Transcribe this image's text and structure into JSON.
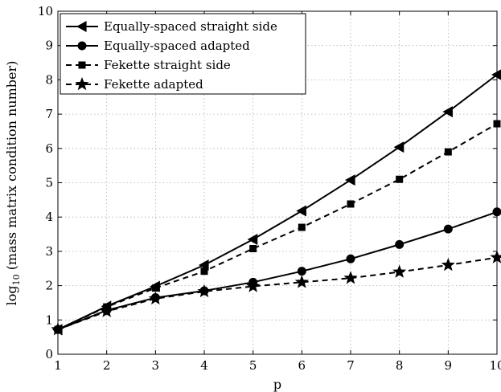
{
  "chart_data": {
    "type": "line",
    "xlabel": "p",
    "ylabel": "log",
    "ylabel_sub": "10",
    "ylabel_rest": " (mass matrix condition number)",
    "xlim": [
      1,
      10
    ],
    "ylim": [
      0,
      10
    ],
    "xticks": [
      "1",
      "2",
      "3",
      "4",
      "5",
      "6",
      "7",
      "8",
      "9",
      "10"
    ],
    "yticks": [
      "0",
      "1",
      "2",
      "3",
      "4",
      "5",
      "6",
      "7",
      "8",
      "9",
      "10"
    ],
    "grid": true,
    "legend_position": "top-left",
    "x": [
      1,
      2,
      3,
      4,
      5,
      6,
      7,
      8,
      9,
      10
    ],
    "series": [
      {
        "name": "Equally-spaced straight side",
        "marker": "triangle-left",
        "line": "solid",
        "values": [
          0.72,
          1.4,
          1.98,
          2.6,
          3.35,
          4.18,
          5.08,
          6.04,
          7.07,
          8.15
        ]
      },
      {
        "name": "Equally-spaced adapted",
        "marker": "circle",
        "line": "solid",
        "values": [
          0.72,
          1.28,
          1.65,
          1.85,
          2.1,
          2.42,
          2.78,
          3.2,
          3.65,
          4.15
        ]
      },
      {
        "name": "Fekette straight side",
        "marker": "square",
        "line": "dashed",
        "values": [
          0.72,
          1.38,
          1.93,
          2.42,
          3.08,
          3.7,
          4.38,
          5.1,
          5.9,
          6.72
        ]
      },
      {
        "name": "Fekette adapted",
        "marker": "star",
        "line": "dashed",
        "values": [
          0.72,
          1.25,
          1.62,
          1.83,
          1.98,
          2.1,
          2.22,
          2.4,
          2.6,
          2.82
        ]
      }
    ],
    "colors": {
      "line": "#000000",
      "grid": "#b0b0b0",
      "background": "#ffffff"
    }
  }
}
